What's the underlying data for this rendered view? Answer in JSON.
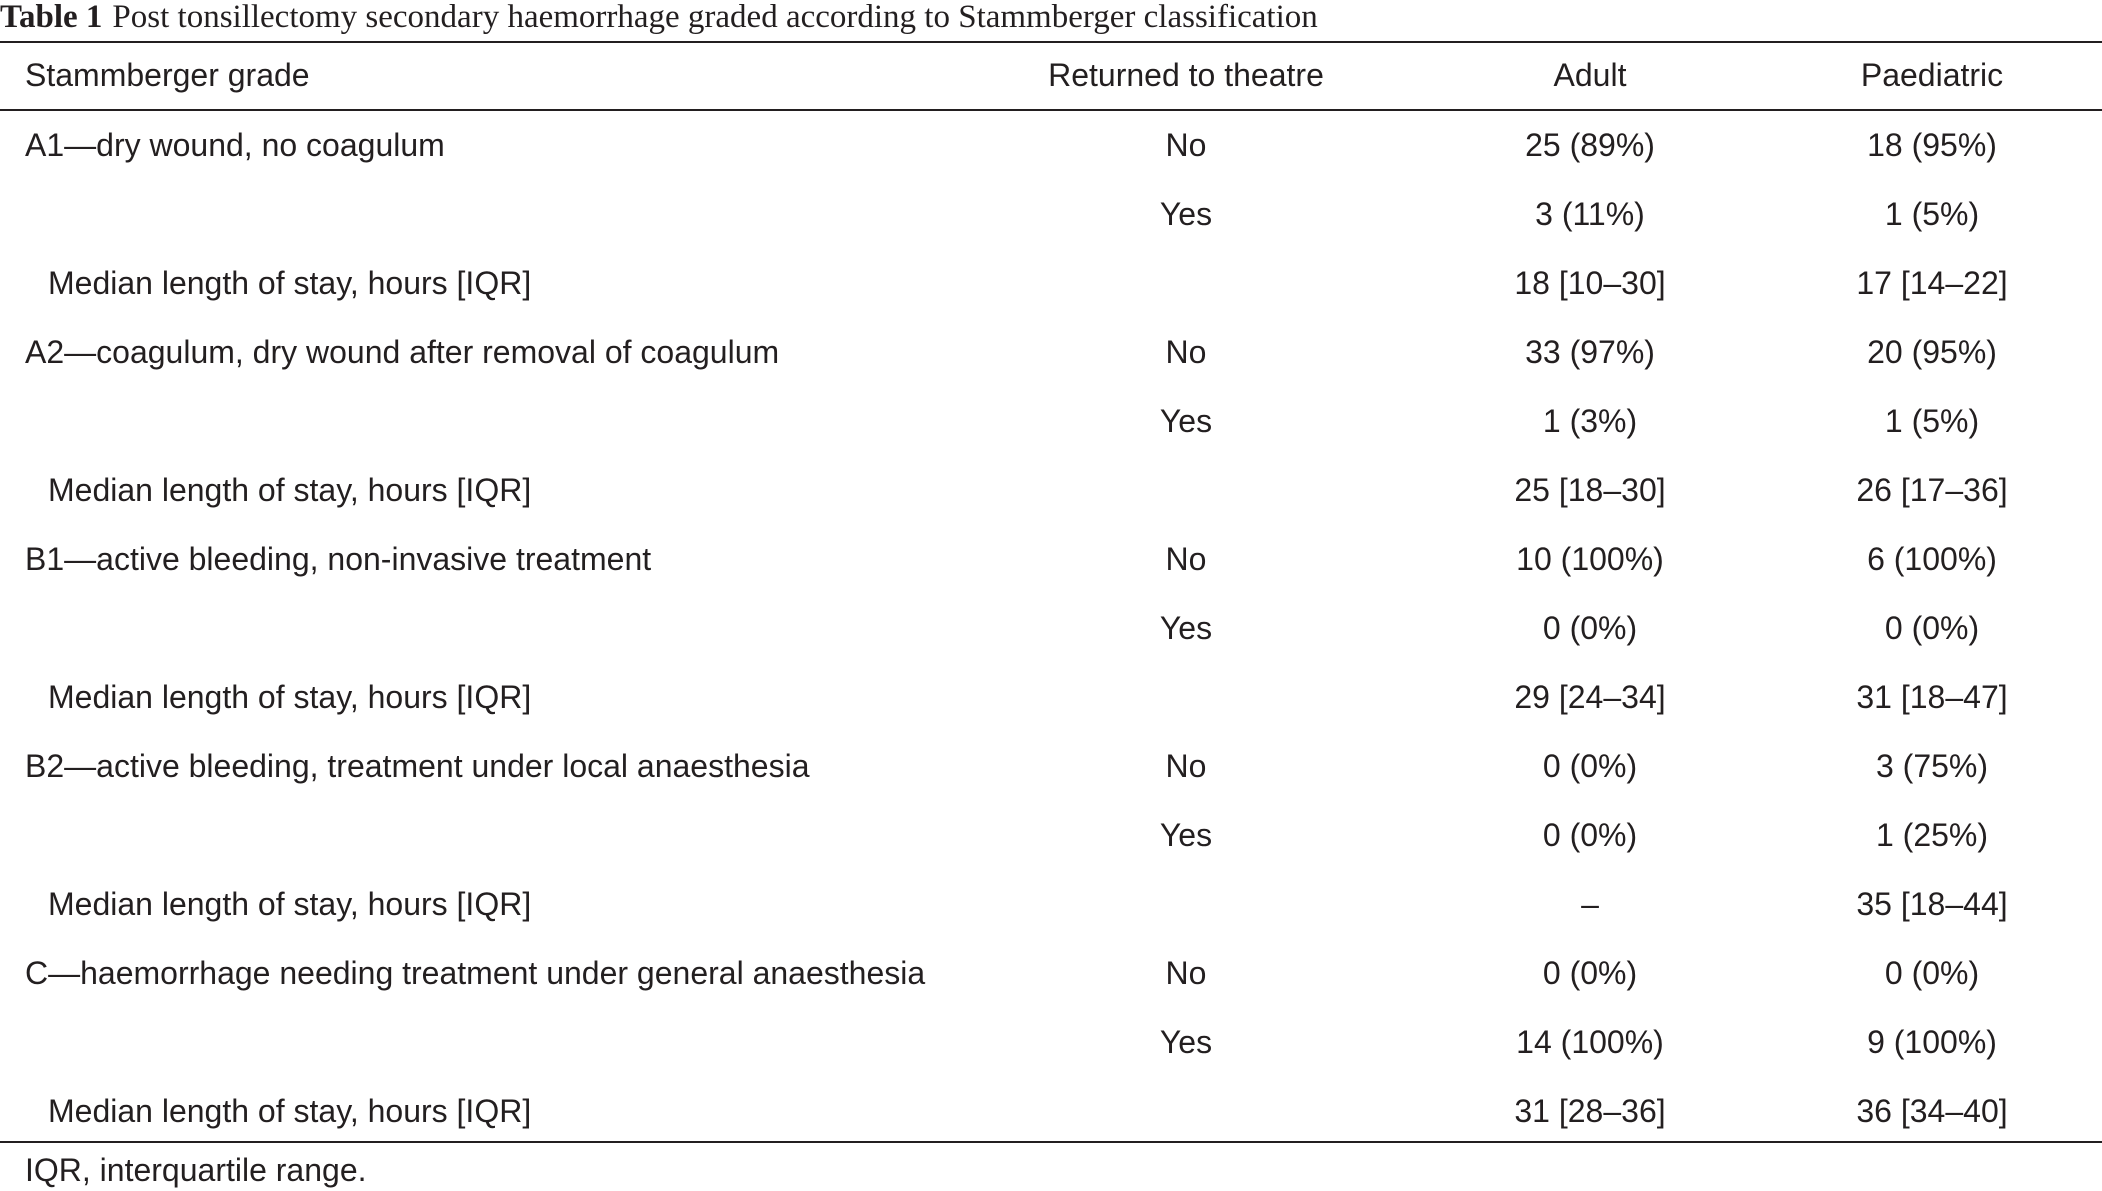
{
  "caption": {
    "label": "Table 1",
    "text": "Post tonsillectomy secondary haemorrhage graded according to Stammberger classification"
  },
  "headers": {
    "grade": "Stammberger grade",
    "theatre": "Returned to theatre",
    "adult": "Adult",
    "paediatric": "Paediatric"
  },
  "rows": [
    {
      "grade": "A1—dry wound, no coagulum",
      "indent": false,
      "theatre": "No",
      "adult": "25 (89%)",
      "paediatric": "18 (95%)"
    },
    {
      "grade": "",
      "indent": false,
      "theatre": "Yes",
      "adult": "3 (11%)",
      "paediatric": "1 (5%)"
    },
    {
      "grade": "Median length of stay, hours [IQR]",
      "indent": true,
      "theatre": "",
      "adult": "18 [10–30]",
      "paediatric": "17 [14–22]"
    },
    {
      "grade": "A2—coagulum, dry wound after removal of coagulum",
      "indent": false,
      "theatre": "No",
      "adult": "33 (97%)",
      "paediatric": "20 (95%)"
    },
    {
      "grade": "",
      "indent": false,
      "theatre": "Yes",
      "adult": "1 (3%)",
      "paediatric": "1 (5%)"
    },
    {
      "grade": "Median length of stay, hours [IQR]",
      "indent": true,
      "theatre": "",
      "adult": "25 [18–30]",
      "paediatric": "26 [17–36]"
    },
    {
      "grade": "B1—active bleeding, non-invasive treatment",
      "indent": false,
      "theatre": "No",
      "adult": "10 (100%)",
      "paediatric": "6 (100%)"
    },
    {
      "grade": "",
      "indent": false,
      "theatre": "Yes",
      "adult": "0 (0%)",
      "paediatric": "0 (0%)"
    },
    {
      "grade": "Median length of stay, hours [IQR]",
      "indent": true,
      "theatre": "",
      "adult": "29 [24–34]",
      "paediatric": "31 [18–47]"
    },
    {
      "grade": "B2—active bleeding, treatment under local anaesthesia",
      "indent": false,
      "theatre": "No",
      "adult": "0 (0%)",
      "paediatric": "3 (75%)"
    },
    {
      "grade": "",
      "indent": false,
      "theatre": "Yes",
      "adult": "0 (0%)",
      "paediatric": "1 (25%)"
    },
    {
      "grade": "Median length of stay, hours [IQR]",
      "indent": true,
      "theatre": "",
      "adult": "–",
      "paediatric": "35 [18–44]"
    },
    {
      "grade": "C—haemorrhage needing treatment under general anaesthesia",
      "indent": false,
      "theatre": "No",
      "adult": "0 (0%)",
      "paediatric": "0 (0%)"
    },
    {
      "grade": "",
      "indent": false,
      "theatre": "Yes",
      "adult": "14 (100%)",
      "paediatric": "9 (100%)"
    },
    {
      "grade": "Median length of stay, hours [IQR]",
      "indent": true,
      "theatre": "",
      "adult": "31 [28–36]",
      "paediatric": "36 [34–40]"
    }
  ],
  "footnote": "IQR, interquartile range."
}
